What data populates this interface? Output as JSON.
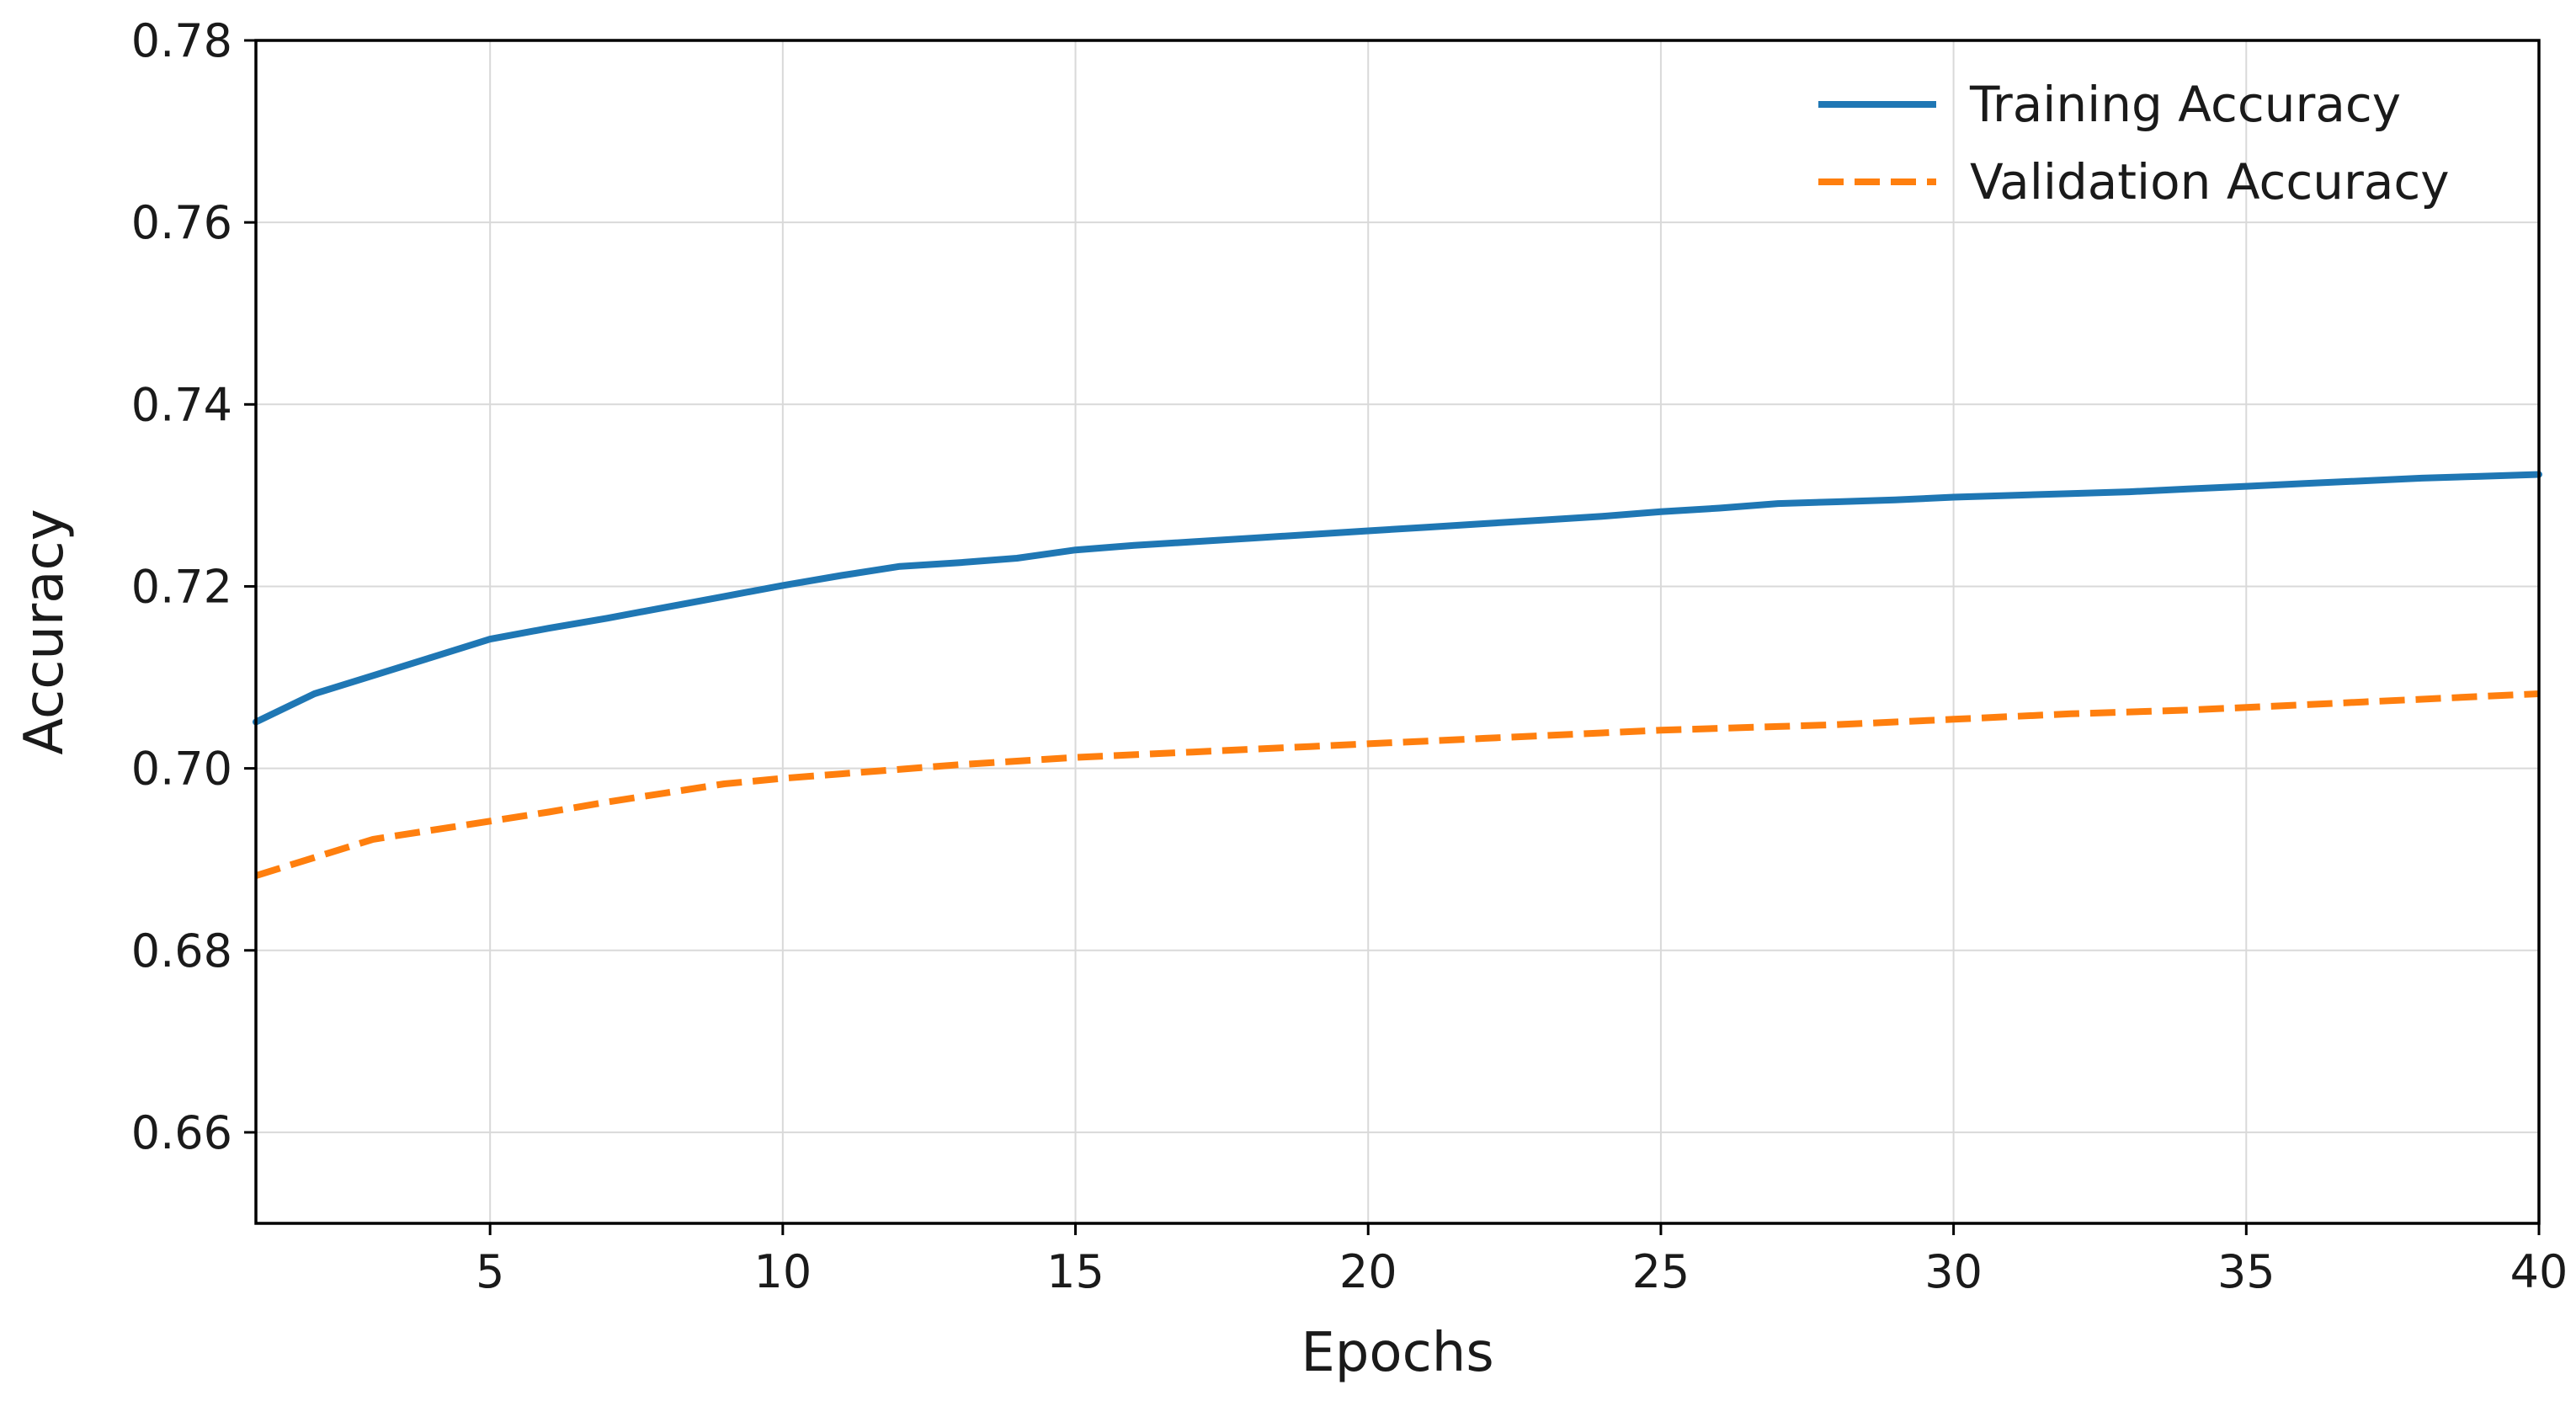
{
  "chart_data": {
    "type": "line",
    "title": "",
    "xlabel": "Epochs",
    "ylabel": "Accuracy",
    "xlim": [
      1,
      40
    ],
    "ylim": [
      0.65,
      0.78
    ],
    "xticks": [
      5,
      10,
      15,
      20,
      25,
      30,
      35,
      40
    ],
    "yticks": [
      0.66,
      0.68,
      0.7,
      0.72,
      0.74,
      0.76,
      0.78
    ],
    "ytick_labels": [
      "0.66",
      "0.68",
      "0.70",
      "0.72",
      "0.74",
      "0.76",
      "0.78"
    ],
    "grid": true,
    "legend_position": "top-right",
    "x": [
      1,
      2,
      3,
      4,
      5,
      6,
      7,
      8,
      9,
      10,
      11,
      12,
      13,
      14,
      15,
      16,
      17,
      18,
      19,
      20,
      21,
      22,
      23,
      24,
      25,
      26,
      27,
      28,
      29,
      30,
      31,
      32,
      33,
      34,
      35,
      36,
      37,
      38,
      39,
      40
    ],
    "series": [
      {
        "name": "Training Accuracy",
        "color": "#1f77b4",
        "style": "solid",
        "values": [
          0.7051,
          0.7082,
          0.7102,
          0.7122,
          0.7142,
          0.7154,
          0.7165,
          0.7177,
          0.7189,
          0.7201,
          0.7212,
          0.7222,
          0.7226,
          0.7231,
          0.724,
          0.7245,
          0.7249,
          0.7253,
          0.7257,
          0.7261,
          0.7265,
          0.7269,
          0.7273,
          0.7277,
          0.7282,
          0.7286,
          0.7291,
          0.7293,
          0.7295,
          0.7298,
          0.73,
          0.7302,
          0.7304,
          0.7307,
          0.731,
          0.7313,
          0.7316,
          0.7319,
          0.7321,
          0.7323
        ]
      },
      {
        "name": "Validation Accuracy",
        "color": "#ff7f0e",
        "style": "dashed",
        "values": [
          0.6882,
          0.6902,
          0.6922,
          0.6932,
          0.6942,
          0.6952,
          0.6963,
          0.6973,
          0.6983,
          0.6989,
          0.6994,
          0.6999,
          0.7004,
          0.7008,
          0.7012,
          0.7015,
          0.7018,
          0.7021,
          0.7024,
          0.7027,
          0.703,
          0.7033,
          0.7036,
          0.7039,
          0.7042,
          0.7044,
          0.7046,
          0.7048,
          0.7051,
          0.7054,
          0.7057,
          0.706,
          0.7062,
          0.7064,
          0.7067,
          0.707,
          0.7073,
          0.7076,
          0.7079,
          0.7082
        ]
      }
    ]
  }
}
